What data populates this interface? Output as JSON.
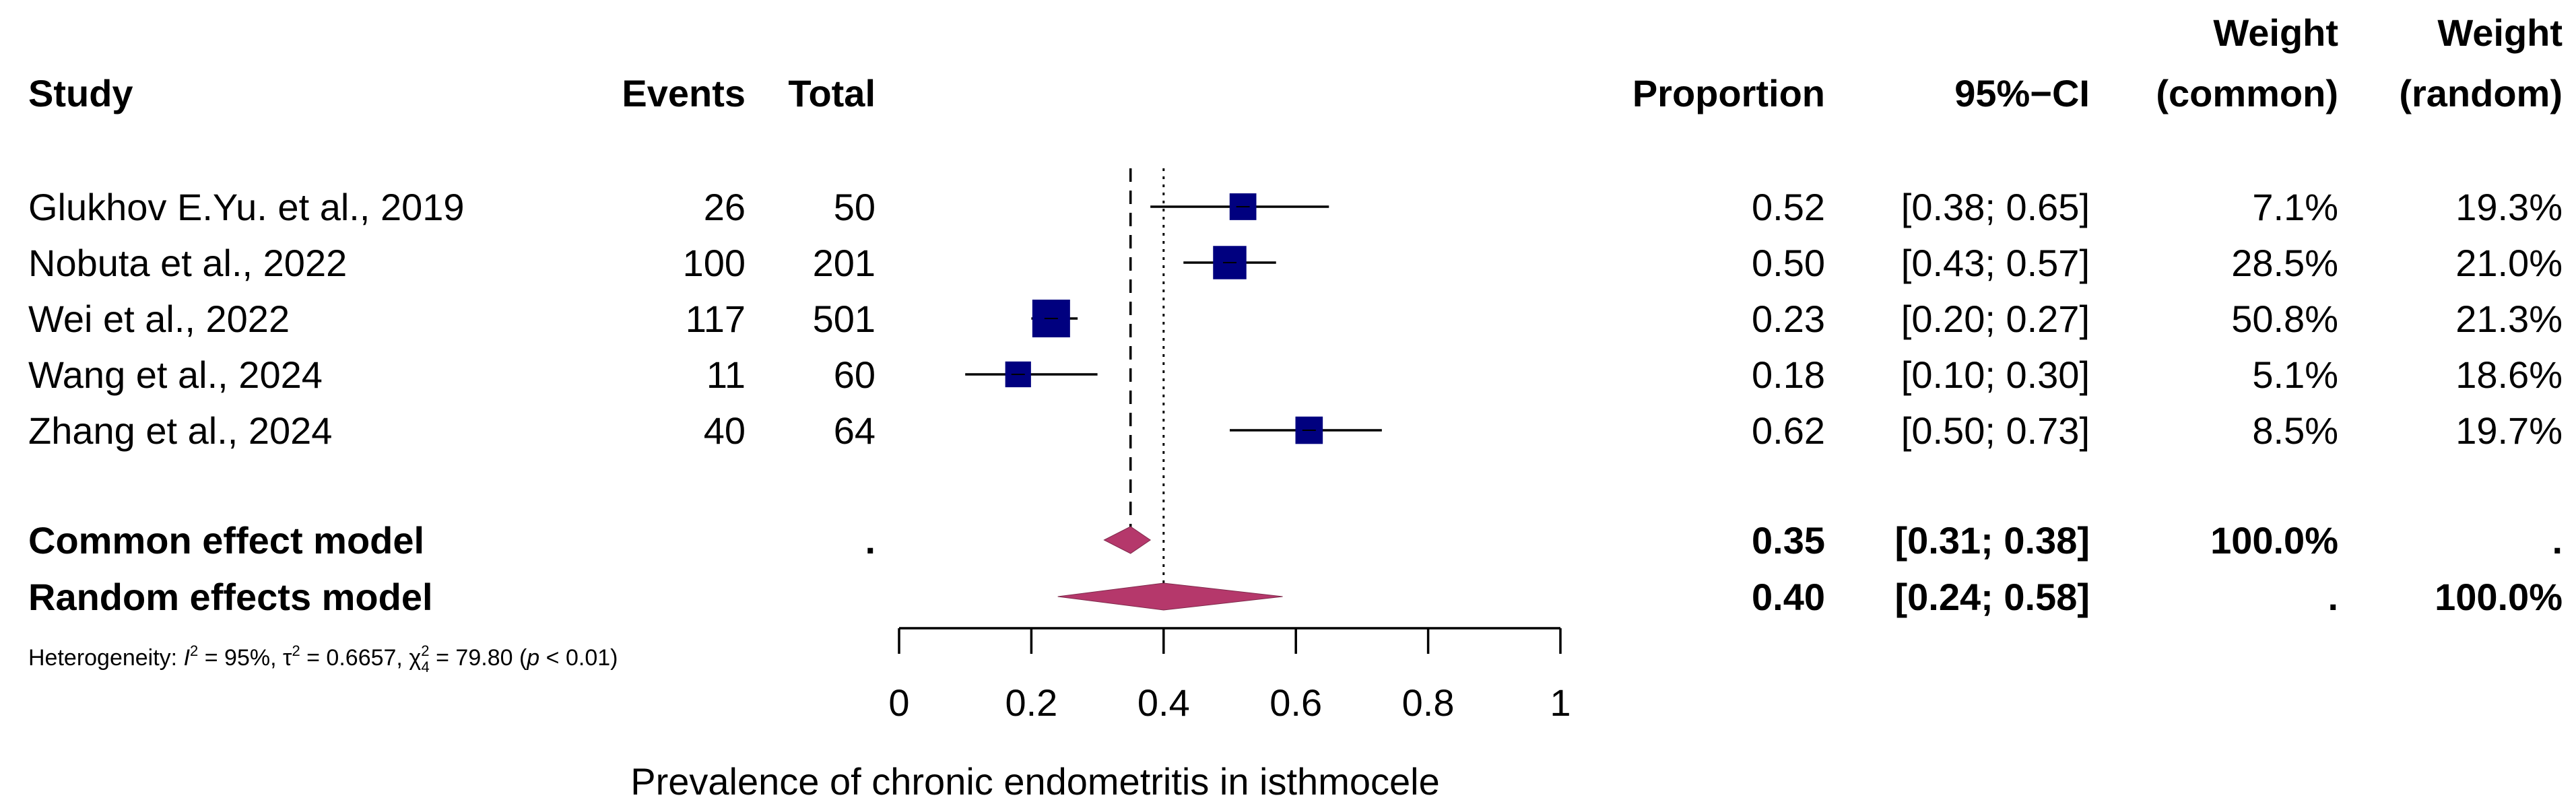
{
  "chart_data": {
    "type": "forest",
    "columns": {
      "study": "Study",
      "events": "Events",
      "total": "Total",
      "proportion": "Proportion",
      "ci": "95%−CI",
      "weight_common_line1": "Weight",
      "weight_common_line2": "(common)",
      "weight_random_line1": "Weight",
      "weight_random_line2": "(random)"
    },
    "studies": [
      {
        "name": "Glukhov E.Yu. et al., 2019",
        "events": "26",
        "total": "50",
        "proportion": 0.52,
        "ci_low": 0.38,
        "ci_high": 0.65,
        "proportion_text": "0.52",
        "ci_text": "[0.38; 0.65]",
        "weight_common": "7.1%",
        "weight_random": "19.3%",
        "box_weight": 7.1
      },
      {
        "name": "Nobuta et al., 2022",
        "events": "100",
        "total": "201",
        "proportion": 0.5,
        "ci_low": 0.43,
        "ci_high": 0.57,
        "proportion_text": "0.50",
        "ci_text": "[0.43; 0.57]",
        "weight_common": "28.5%",
        "weight_random": "21.0%",
        "box_weight": 28.5
      },
      {
        "name": "Wei et al., 2022",
        "events": "117",
        "total": "501",
        "proportion": 0.23,
        "ci_low": 0.2,
        "ci_high": 0.27,
        "proportion_text": "0.23",
        "ci_text": "[0.20; 0.27]",
        "weight_common": "50.8%",
        "weight_random": "21.3%",
        "box_weight": 50.8
      },
      {
        "name": "Wang et al., 2024",
        "events": "11",
        "total": "60",
        "proportion": 0.18,
        "ci_low": 0.1,
        "ci_high": 0.3,
        "proportion_text": "0.18",
        "ci_text": "[0.10; 0.30]",
        "weight_common": "5.1%",
        "weight_random": "18.6%",
        "box_weight": 5.1
      },
      {
        "name": "Zhang et al., 2024",
        "events": "40",
        "total": "64",
        "proportion": 0.62,
        "ci_low": 0.5,
        "ci_high": 0.73,
        "proportion_text": "0.62",
        "ci_text": "[0.50; 0.73]",
        "weight_common": "8.5%",
        "weight_random": "19.7%",
        "box_weight": 8.5
      }
    ],
    "summaries": [
      {
        "name": "Common effect model",
        "events": ".",
        "estimate": 0.35,
        "ci_low": 0.31,
        "ci_high": 0.38,
        "proportion_text": "0.35",
        "ci_text": "[0.31; 0.38]",
        "weight_common": "100.0%",
        "weight_random": "."
      },
      {
        "name": "Random effects model",
        "events": "",
        "estimate": 0.4,
        "ci_low": 0.24,
        "ci_high": 0.58,
        "proportion_text": "0.40",
        "ci_text": "[0.24; 0.58]",
        "weight_common": ".",
        "weight_random": "100.0%"
      }
    ],
    "heterogeneity": {
      "prefix": "Heterogeneity: ",
      "i2_symbol": "I",
      "i2_sup": "2",
      "i2_value": " = 95%, ",
      "tau_symbol": "τ",
      "tau_sup": "2",
      "tau_value": " = 0.6657, ",
      "chi_symbol": "χ",
      "chi_sup": "2",
      "chi_sub": "4",
      "chi_value": " = 79.80 (",
      "p_symbol": "p",
      "p_value": " < 0.01)"
    },
    "x_axis": {
      "label": "Prevalence of chronic endometritis in isthmocele",
      "range": [
        0,
        1
      ],
      "ticks": [
        0,
        0.2,
        0.4,
        0.6,
        0.8,
        1
      ],
      "tick_labels": [
        "0",
        "0.2",
        "0.4",
        "0.6",
        "0.8",
        "1"
      ]
    },
    "reference_lines": {
      "common_effect": 0.35,
      "random_effects": 0.4
    },
    "colors": {
      "box": "#00007f",
      "diamond": "#b5386b",
      "line": "#000000"
    }
  }
}
